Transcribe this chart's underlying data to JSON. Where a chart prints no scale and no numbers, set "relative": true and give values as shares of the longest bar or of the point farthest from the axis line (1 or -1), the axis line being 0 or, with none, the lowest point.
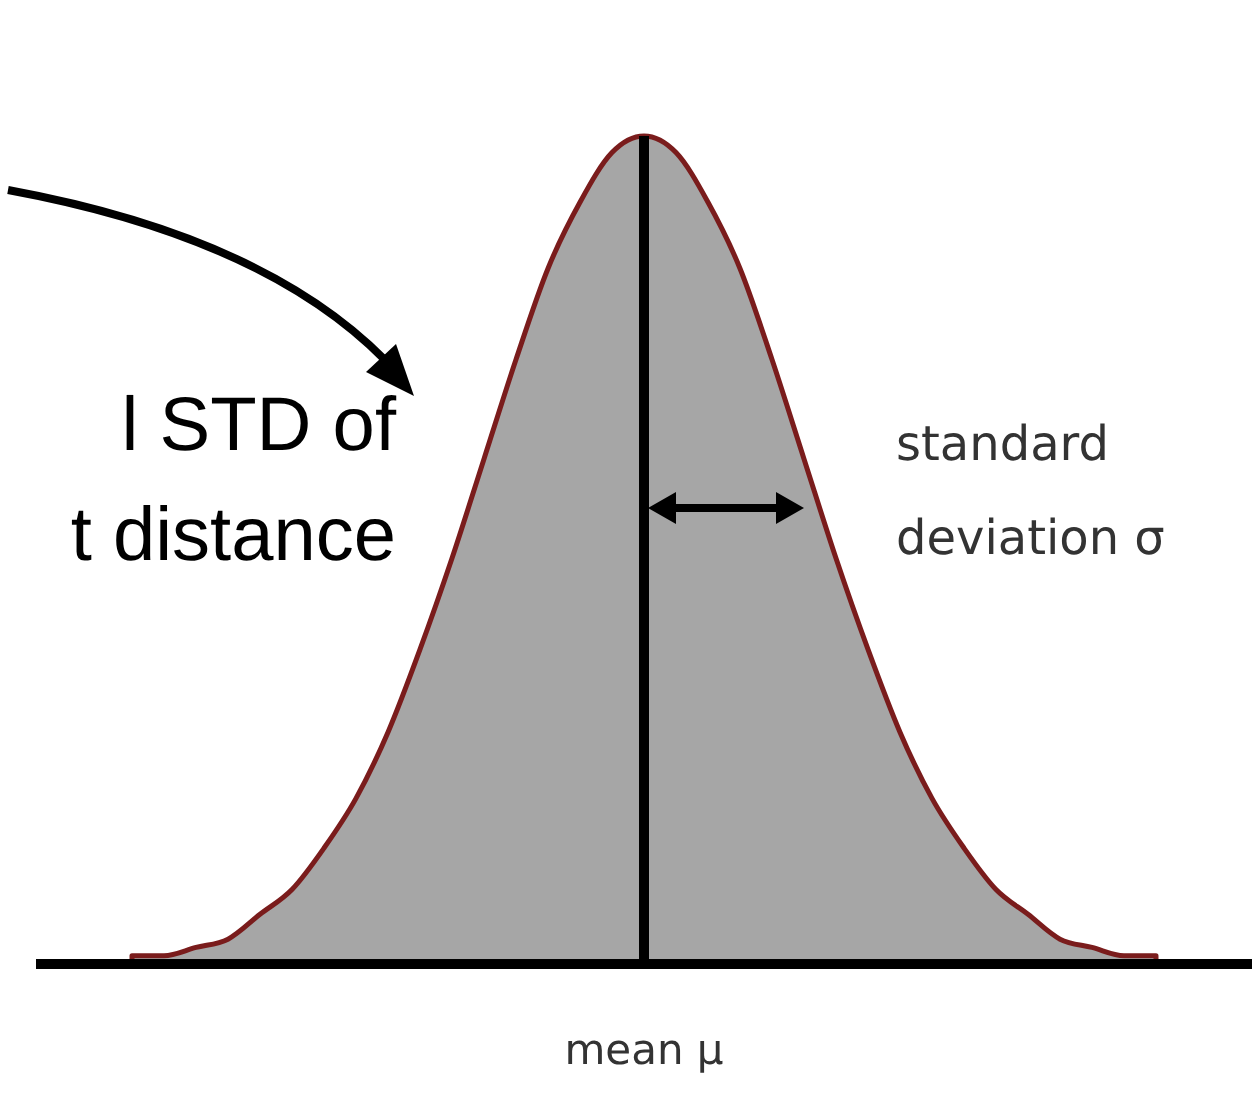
{
  "chart_data": {
    "type": "area",
    "relative": true,
    "categories": [
      null,
      null,
      null,
      null,
      null,
      null,
      null,
      null,
      null,
      null,
      null,
      null,
      null,
      null,
      null,
      null,
      null,
      null,
      null,
      null,
      null,
      null,
      null,
      null,
      null,
      null,
      null,
      null,
      null,
      null,
      null,
      null,
      null
    ],
    "series": [
      {
        "color": "#a6a6a6",
        "values": [
          0.01,
          0.01,
          0.02,
          0.03,
          0.06,
          0.09,
          0.14,
          0.2,
          0.28,
          0.38,
          0.49,
          0.61,
          0.73,
          0.84,
          0.92,
          0.98,
          1,
          0.98,
          0.92,
          0.84,
          0.73,
          0.61,
          0.49,
          0.38,
          0.28,
          0.2,
          0.14,
          0.09,
          0.06,
          0.03,
          0.02,
          0.01,
          0.01
        ]
      }
    ],
    "ref_lines": [
      {
        "axis": "x",
        "label": "mean μ",
        "color": "#000000"
      }
    ],
    "annotations": [
      "l STD of\nt distance",
      "standard\ndeviation σ"
    ]
  }
}
